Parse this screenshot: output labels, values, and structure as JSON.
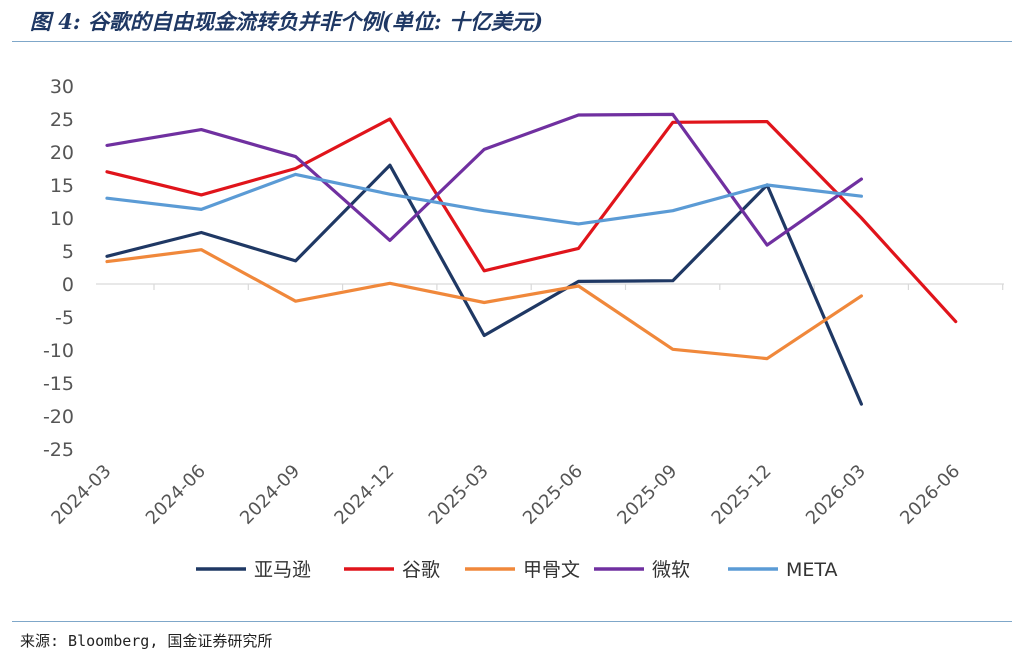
{
  "figure": {
    "title": "图 4: 谷歌的自由现金流转负并非个例(单位: 十亿美元)",
    "source": "来源: Bloomberg, 国金证券研究所"
  },
  "chart_data": {
    "type": "line",
    "title": "图 4: 谷歌的自由现金流转负并非个例(单位: 十亿美元)",
    "xlabel": "",
    "ylabel": "",
    "categories": [
      "2024-03",
      "2024-06",
      "2024-09",
      "2024-12",
      "2025-03",
      "2025-06",
      "2025-09",
      "2025-12",
      "2026-03",
      "2026-06"
    ],
    "yticks": [
      "30",
      "25",
      "20",
      "15",
      "10",
      "5",
      "0",
      "-5",
      "-10",
      "-15",
      "-20",
      "-25"
    ],
    "ylim": [
      -25,
      30
    ],
    "grid": false,
    "legend_position": "bottom",
    "series": [
      {
        "name": "亚马逊",
        "color": "#1f3864",
        "values": [
          4.2,
          7.8,
          3.5,
          18.0,
          -7.8,
          0.4,
          0.5,
          15.0,
          -18.2,
          null
        ]
      },
      {
        "name": "谷歌",
        "color": "#e0141b",
        "values": [
          17.0,
          13.5,
          17.5,
          25.0,
          2.0,
          5.4,
          24.5,
          24.6,
          10.0,
          -5.7
        ]
      },
      {
        "name": "甲骨文",
        "color": "#f0883b",
        "values": [
          3.4,
          5.2,
          -2.6,
          0.1,
          -2.8,
          -0.3,
          -9.9,
          -11.3,
          -1.8,
          null
        ]
      },
      {
        "name": "微软",
        "color": "#7030a0",
        "values": [
          21.0,
          23.4,
          19.3,
          6.6,
          20.4,
          25.6,
          25.7,
          5.9,
          15.9,
          null
        ]
      },
      {
        "name": "META",
        "color": "#5b9bd5",
        "values": [
          13.0,
          11.3,
          16.6,
          13.6,
          11.1,
          9.1,
          11.1,
          15.0,
          13.3,
          null
        ]
      }
    ]
  }
}
